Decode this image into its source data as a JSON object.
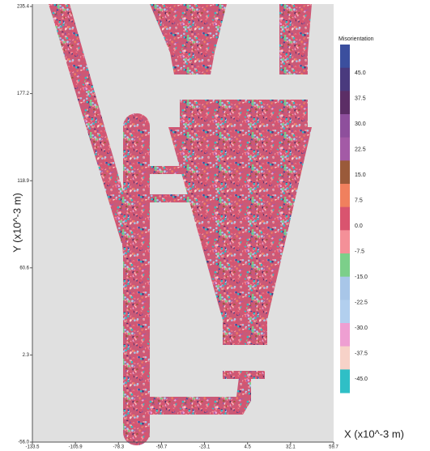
{
  "plot": {
    "y_axis_label": "Y (x10^-3 m)",
    "x_axis_label": "X (x10^-3 m)",
    "yticks": [
      "235.4",
      "177.2",
      "118.9",
      "60.6",
      "2.3",
      "-56.0"
    ],
    "xticks": [
      "-133.5",
      "-105.9",
      "-78.3",
      "-50.7",
      "-23.1",
      "4.5",
      "32.1",
      "59.7"
    ]
  },
  "colorbar": {
    "title": "Misorientation",
    "labels": [
      "45.0",
      "37.5",
      "30.0",
      "22.5",
      "15.0",
      "7.5",
      "0.0",
      "-7.5",
      "-15.0",
      "-22.5",
      "-30.0",
      "-37.5",
      "-45.0"
    ],
    "colors": [
      "#3b4f9e",
      "#4a3a7e",
      "#5c2e66",
      "#8e4f9c",
      "#a35aa6",
      "#9a5a3a",
      "#f0805e",
      "#d9546f",
      "#f49098",
      "#7ccf8a",
      "#a8c6e8",
      "#b2cfee",
      "#ee9fd2",
      "#f7d2c8",
      "#2fbfc6"
    ]
  }
}
